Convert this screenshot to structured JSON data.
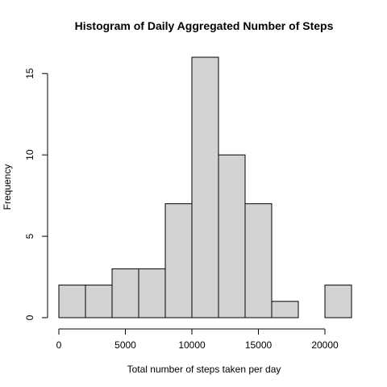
{
  "chart_data": {
    "type": "bar",
    "title": "Histogram of Daily Aggregated Number of Steps",
    "xlabel": "Total number of steps taken per day",
    "ylabel": "Frequency",
    "bins": [
      {
        "start": 0,
        "end": 2000,
        "count": 2
      },
      {
        "start": 2000,
        "end": 4000,
        "count": 2
      },
      {
        "start": 4000,
        "end": 6000,
        "count": 3
      },
      {
        "start": 6000,
        "end": 8000,
        "count": 3
      },
      {
        "start": 8000,
        "end": 10000,
        "count": 7
      },
      {
        "start": 10000,
        "end": 12000,
        "count": 16
      },
      {
        "start": 12000,
        "end": 14000,
        "count": 10
      },
      {
        "start": 14000,
        "end": 16000,
        "count": 7
      },
      {
        "start": 16000,
        "end": 18000,
        "count": 1
      },
      {
        "start": 18000,
        "end": 20000,
        "count": 0
      },
      {
        "start": 20000,
        "end": 22000,
        "count": 2
      }
    ],
    "xlim": [
      0,
      22000
    ],
    "ylim": [
      0,
      16
    ],
    "x_ticks": [
      0,
      5000,
      10000,
      15000,
      20000
    ],
    "y_ticks": [
      0,
      5,
      10,
      15
    ],
    "grid": false,
    "colors": {
      "bar_fill": "#d3d3d3",
      "bar_stroke": "#000000"
    }
  }
}
